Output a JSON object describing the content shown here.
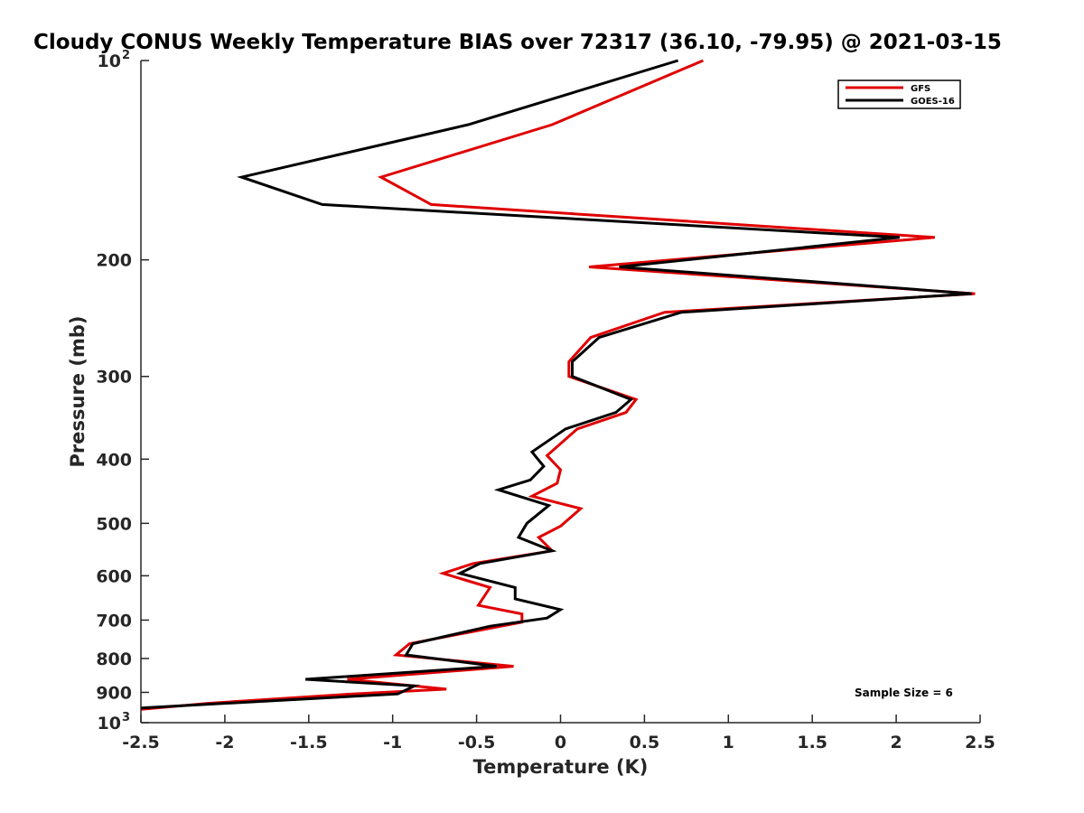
{
  "chart_data": {
    "type": "line",
    "title": "Cloudy CONUS Weekly Temperature BIAS over 72317 (36.10, -79.95) @ 2021-03-15",
    "xlabel": "Temperature (K)",
    "ylabel": "Pressure (mb)",
    "xlim": [
      -2.5,
      2.5
    ],
    "ylim": [
      100,
      1000
    ],
    "y_scale": "log",
    "y_reversed": true,
    "grid": false,
    "legend_position": "top-right",
    "x_ticks": [
      "-2.5",
      "-2",
      "-1.5",
      "-1",
      "-0.5",
      "0",
      "0.5",
      "1",
      "1.5",
      "2",
      "2.5"
    ],
    "x_tick_values": [
      -2.5,
      -2,
      -1.5,
      -1,
      -0.5,
      0,
      0.5,
      1,
      1.5,
      2,
      2.5
    ],
    "y_ticks": [
      {
        "value": 100,
        "base": "10",
        "exp": "2"
      },
      {
        "value": 200,
        "label": "200"
      },
      {
        "value": 300,
        "label": "300"
      },
      {
        "value": 400,
        "label": "400"
      },
      {
        "value": 500,
        "label": "500"
      },
      {
        "value": 600,
        "label": "600"
      },
      {
        "value": 700,
        "label": "700"
      },
      {
        "value": 800,
        "label": "800"
      },
      {
        "value": 900,
        "label": "900"
      },
      {
        "value": 1000,
        "base": "10",
        "exp": "3"
      }
    ],
    "series": [
      {
        "name": "GFS",
        "color": "#e00000",
        "points": [
          [
            0.85,
            100
          ],
          [
            -0.05,
            125
          ],
          [
            -1.07,
            150
          ],
          [
            -0.77,
            165
          ],
          [
            2.23,
            185
          ],
          [
            0.17,
            205
          ],
          [
            2.47,
            225
          ],
          [
            0.62,
            240
          ],
          [
            0.18,
            262
          ],
          [
            0.05,
            285
          ],
          [
            0.05,
            300
          ],
          [
            0.45,
            325
          ],
          [
            0.39,
            340
          ],
          [
            0.1,
            360
          ],
          [
            -0.08,
            395
          ],
          [
            0.0,
            415
          ],
          [
            -0.02,
            435
          ],
          [
            -0.17,
            455
          ],
          [
            0.12,
            475
          ],
          [
            0.0,
            505
          ],
          [
            -0.13,
            525
          ],
          [
            -0.05,
            550
          ],
          [
            -0.52,
            575
          ],
          [
            -0.7,
            595
          ],
          [
            -0.42,
            625
          ],
          [
            -0.49,
            665
          ],
          [
            -0.23,
            685
          ],
          [
            -0.23,
            705
          ],
          [
            -0.48,
            725
          ],
          [
            -0.9,
            760
          ],
          [
            -0.98,
            790
          ],
          [
            -0.28,
            822
          ],
          [
            -1.27,
            860
          ],
          [
            -0.68,
            890
          ],
          [
            -1.24,
            905
          ],
          [
            -2.1,
            935
          ],
          [
            -2.5,
            955
          ]
        ]
      },
      {
        "name": "GOES-16",
        "color": "#000000",
        "points": [
          [
            0.7,
            100
          ],
          [
            -0.55,
            125
          ],
          [
            -1.9,
            150
          ],
          [
            -1.42,
            165
          ],
          [
            2.02,
            185
          ],
          [
            0.35,
            205
          ],
          [
            2.45,
            225
          ],
          [
            0.72,
            240
          ],
          [
            0.23,
            262
          ],
          [
            0.07,
            285
          ],
          [
            0.07,
            300
          ],
          [
            0.42,
            325
          ],
          [
            0.33,
            340
          ],
          [
            0.03,
            360
          ],
          [
            -0.17,
            390
          ],
          [
            -0.1,
            410
          ],
          [
            -0.18,
            430
          ],
          [
            -0.37,
            445
          ],
          [
            -0.07,
            470
          ],
          [
            -0.2,
            500
          ],
          [
            -0.25,
            525
          ],
          [
            -0.05,
            550
          ],
          [
            -0.48,
            575
          ],
          [
            -0.6,
            595
          ],
          [
            -0.27,
            625
          ],
          [
            -0.27,
            650
          ],
          [
            0.0,
            675
          ],
          [
            -0.08,
            695
          ],
          [
            -0.42,
            715
          ],
          [
            -0.88,
            760
          ],
          [
            -0.92,
            790
          ],
          [
            -0.38,
            822
          ],
          [
            -1.52,
            860
          ],
          [
            -0.87,
            880
          ],
          [
            -0.97,
            905
          ],
          [
            -2.5,
            950
          ]
        ]
      }
    ],
    "annotations": [
      {
        "text": "Sample Size = 6"
      }
    ]
  }
}
